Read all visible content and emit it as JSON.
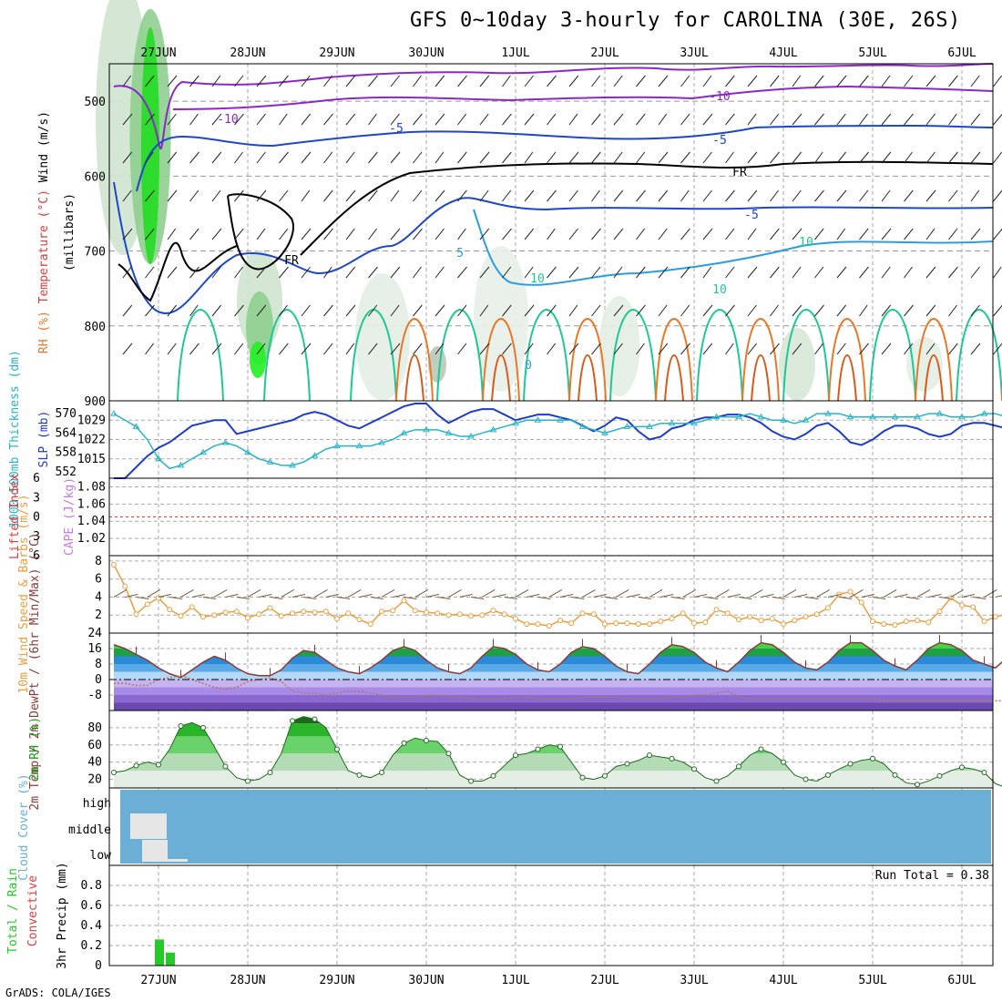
{
  "title": "GFS 0~10day 3-hourly for CAROLINA (30E, 26S)",
  "footer": "GrADS: COLA/IGES",
  "dates": [
    "27JUN",
    "28JUN",
    "29JUN",
    "30JUN",
    "1JUL",
    "2JUL",
    "3JUL",
    "4JUL",
    "5JUL",
    "6JUL"
  ],
  "colors": {
    "wind": "#888888",
    "temp_warm": "#e87828",
    "temp_cold_light": "#2c9ee0",
    "temp_blue": "#1e46c8",
    "temp_purple": "#8c28c8",
    "temp_green": "#1ec896",
    "rh_dark": "#1e8c1e",
    "rh_light": "#dce8dc",
    "cloud": "#6baed6",
    "slp": "#1e3cc8",
    "thickness": "#28b4c8",
    "rain": "#28c828",
    "lifted": "#e03c3c"
  },
  "chart_data": [
    {
      "type": "heatmap",
      "name": "upper_air",
      "ylabels": [
        "Wind (m/s)",
        "Temperature (°C)",
        "RH (%)",
        "(millibars)"
      ],
      "ylim": [
        900,
        450
      ],
      "yticks": [
        500,
        600,
        700,
        800,
        900
      ],
      "contour_labels": [
        "-10",
        "-10",
        "-5",
        "-5",
        "FR",
        "FR",
        "-5",
        "5",
        "10",
        "0",
        "10",
        "10"
      ],
      "grid": true
    },
    {
      "type": "line",
      "name": "thickness_slp",
      "ylabel_left": "1000-500mb Thickness (dm)",
      "ylabel_right": "SLP (mb)",
      "left_ticks": [
        552,
        558,
        564,
        570
      ],
      "right_ticks": [
        1015,
        1022,
        1029
      ],
      "series": [
        {
          "name": "SLP",
          "values": [
            1008,
            1008,
            1012,
            1016,
            1019,
            1021,
            1024,
            1027,
            1028,
            1029,
            1029,
            1024,
            1025,
            1026,
            1027,
            1028,
            1029,
            1031,
            1032,
            1031,
            1029,
            1027,
            1026,
            1028,
            1030,
            1032,
            1034,
            1035,
            1035,
            1031,
            1028,
            1030,
            1032,
            1033,
            1033,
            1031,
            1029,
            1030,
            1031,
            1031,
            1030,
            1029,
            1027,
            1025,
            1027,
            1030,
            1029,
            1025,
            1022,
            1023,
            1026,
            1027,
            1029,
            1030,
            1030,
            1031,
            1031,
            1030,
            1028,
            1025,
            1023,
            1022,
            1024,
            1027,
            1028,
            1025,
            1021,
            1020,
            1022,
            1025,
            1027,
            1027,
            1026,
            1024,
            1023,
            1024,
            1027,
            1028,
            1028,
            1027,
            1026,
            1027,
            1028
          ]
        },
        {
          "name": "1000-500mb Thickness",
          "values": [
            570,
            568,
            566,
            562,
            556,
            553,
            554,
            556,
            558,
            560,
            561,
            560,
            558,
            556,
            555,
            554,
            554,
            555,
            557,
            559,
            560,
            560,
            560,
            560,
            561,
            562,
            564,
            565,
            565,
            565,
            564,
            563,
            563,
            564,
            565,
            566,
            567,
            568,
            568,
            568,
            568,
            568,
            566,
            565,
            564,
            565,
            566,
            566,
            566,
            567,
            567,
            567,
            567,
            568,
            569,
            569,
            569,
            570,
            569,
            568,
            568,
            567,
            568,
            570,
            570,
            570,
            569,
            569,
            569,
            569,
            569,
            569,
            569,
            570,
            570,
            569,
            569,
            569,
            570,
            570,
            569,
            569,
            569
          ]
        }
      ]
    },
    {
      "type": "line",
      "name": "stability",
      "ylabel_left": "Lifted Index",
      "ylabel_right": "CAPE (J/kg)",
      "left_ticks": [
        -6,
        -3,
        0,
        3,
        6
      ],
      "right_ticks": [
        1.02,
        1.04,
        1.06,
        1.08
      ],
      "series": [
        {
          "name": "CAPE",
          "values": []
        }
      ]
    },
    {
      "type": "line",
      "name": "wind10m",
      "ylabel": "10m Wind Speed & Barbs (m/s)",
      "ylim": [
        0,
        8
      ],
      "yticks": [
        2,
        4,
        6,
        8
      ],
      "series": [
        {
          "name": "10m Wind Speed",
          "values": [
            7.6,
            5.2,
            2.1,
            3.2,
            3.9,
            2.6,
            1.9,
            2.9,
            1.8,
            2.0,
            2.3,
            2.4,
            1.7,
            2.1,
            2.8,
            1.9,
            2.2,
            2.4,
            2.3,
            2.4,
            1.6,
            2.2,
            1.5,
            1.0,
            2.4,
            2.5,
            3.6,
            2.5,
            2.3,
            2.2,
            2.0,
            2.1,
            1.9,
            2.0,
            2.5,
            2.1,
            1.6,
            1.0,
            1.0,
            0.8,
            1.4,
            1.1,
            2.2,
            2.1,
            1.0,
            1.1,
            1.1,
            1.0,
            1.0,
            1.3,
            1.6,
            2.2,
            1.1,
            1.2,
            2.6,
            2.2,
            1.5,
            1.8,
            1.4,
            1.6,
            1.0,
            1.4,
            1.8,
            2.1,
            2.8,
            4.3,
            4.6,
            3.4,
            1.3,
            1.0,
            0.9,
            1.3,
            1.4,
            1.2,
            2.4,
            3.9,
            3.1,
            2.9,
            1.3,
            1.8,
            2.1,
            1.9,
            2.3
          ]
        }
      ]
    },
    {
      "type": "area",
      "name": "temperature",
      "ylabel": "2m Temp / 2m DewPt / (6hr Min/Max) (°C)",
      "ylim": [
        -16,
        24
      ],
      "yticks": [
        -8,
        0,
        8,
        16,
        24
      ],
      "series": [
        {
          "name": "2m Temp",
          "values": [
            18,
            16,
            13,
            10,
            6,
            3,
            1,
            5,
            9,
            12,
            10,
            6,
            3,
            2,
            2,
            5,
            11,
            15,
            14,
            10,
            6,
            4,
            3,
            6,
            10,
            15,
            17,
            15,
            10,
            6,
            4,
            3,
            6,
            12,
            17,
            16,
            13,
            8,
            5,
            4,
            8,
            14,
            17,
            16,
            12,
            7,
            4,
            3,
            8,
            14,
            18,
            17,
            14,
            9,
            6,
            4,
            9,
            15,
            19,
            18,
            14,
            9,
            6,
            5,
            9,
            15,
            19,
            19,
            15,
            10,
            7,
            5,
            10,
            16,
            19,
            18,
            15,
            10,
            8,
            6,
            11,
            16,
            20
          ]
        },
        {
          "name": "2m DewPt",
          "values": [
            -2,
            -2,
            -3,
            -3,
            0,
            1,
            2,
            0,
            -2,
            -4,
            -5,
            -4,
            -1,
            0,
            1,
            -1,
            -6,
            -7,
            -7,
            -8,
            -7,
            -6,
            -6,
            -7,
            -8,
            -9,
            -9,
            -9,
            -8,
            -8,
            -9,
            -9,
            -10,
            -10,
            -10,
            -10,
            -9,
            -9,
            -10,
            -10,
            -10,
            -10,
            -9,
            -9,
            -9,
            -9,
            -10,
            -10,
            -10,
            -10,
            -9,
            -9,
            -8,
            -8,
            -7,
            -6,
            -9,
            -10,
            -10,
            -10,
            -10,
            -10,
            -10,
            -10,
            -10,
            -10,
            -10,
            -10,
            -10,
            -11,
            -11,
            -11,
            -11,
            -11,
            -11,
            -11,
            -11,
            -11,
            -11,
            -11,
            -11,
            -11,
            -11
          ]
        }
      ]
    },
    {
      "type": "area",
      "name": "rh2m",
      "ylabel": "2m RH (%)",
      "ylim": [
        10,
        100
      ],
      "yticks": [
        20,
        40,
        60,
        80
      ],
      "series": [
        {
          "name": "2m RH",
          "values": [
            28,
            30,
            36,
            40,
            37,
            55,
            82,
            86,
            80,
            58,
            35,
            22,
            18,
            20,
            28,
            50,
            88,
            93,
            90,
            80,
            55,
            30,
            25,
            22,
            28,
            48,
            62,
            68,
            65,
            64,
            50,
            25,
            18,
            18,
            24,
            36,
            48,
            50,
            55,
            60,
            58,
            40,
            22,
            20,
            24,
            35,
            38,
            42,
            48,
            46,
            44,
            40,
            32,
            22,
            18,
            24,
            35,
            48,
            55,
            50,
            40,
            25,
            20,
            18,
            25,
            32,
            38,
            42,
            44,
            38,
            25,
            16,
            14,
            18,
            24,
            30,
            34,
            32,
            28,
            15,
            10,
            12,
            20
          ]
        }
      ]
    },
    {
      "type": "bar",
      "name": "cloud_cover",
      "ylabel": "Cloud Cover (%)",
      "categories": [
        "high",
        "middle",
        "low"
      ]
    },
    {
      "type": "bar",
      "name": "precip",
      "ylabel": "3hr Precip (mm)",
      "legend": [
        "Total / Rain",
        "Convective"
      ],
      "annotation": "Run Total = 0.38",
      "ylim": [
        0,
        1.0
      ],
      "yticks": [
        0,
        0.2,
        0.4,
        0.6,
        0.8
      ],
      "series": [
        {
          "name": "Total / Rain",
          "values": [
            {
              "x": "27JUN",
              "y": 0.26
            },
            {
              "x": "27JUN",
              "y": 0.13
            }
          ]
        }
      ]
    }
  ]
}
